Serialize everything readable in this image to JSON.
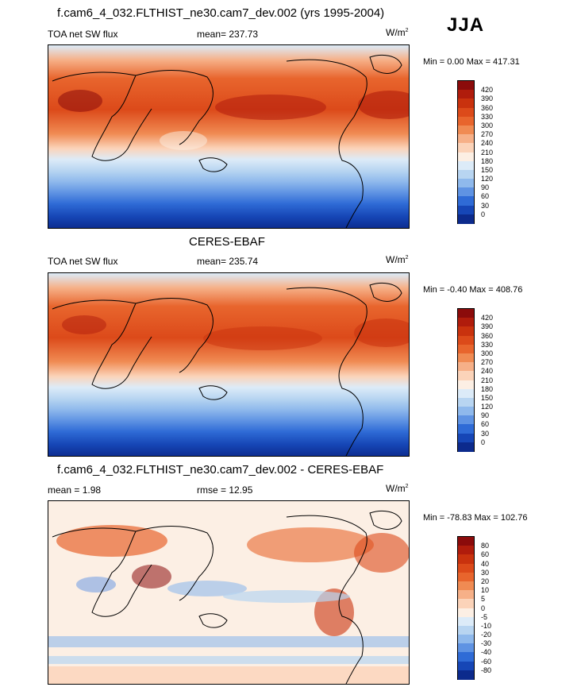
{
  "season": "JJA",
  "panels": [
    {
      "id": "model",
      "title": "f.cam6_4_032.FLTHIST_ne30.cam7_dev.002 (yrs 1995-2004)",
      "left_label": "TOA net SW flux",
      "center_label": "mean= 237.73",
      "units_base": "W/m",
      "units_sup": "2",
      "minmax": "Min =   0.00 Max = 417.31",
      "colorbar": {
        "labels": [
          "420",
          "390",
          "360",
          "330",
          "300",
          "270",
          "240",
          "210",
          "180",
          "150",
          "120",
          "90",
          "60",
          "30",
          "0"
        ],
        "colors": [
          "#8b0b0b",
          "#b01c0c",
          "#c9320e",
          "#dc4a1a",
          "#e8652d",
          "#f08b53",
          "#f6b088",
          "#fbd3b9",
          "#fcefe4",
          "#dcebf8",
          "#b8d5f1",
          "#8fb9ec",
          "#5f93e3",
          "#2f6bd6",
          "#1646b6",
          "#0c2a8c"
        ]
      }
    },
    {
      "id": "obs",
      "title": "CERES-EBAF",
      "left_label": "TOA net SW flux",
      "center_label": "mean= 235.74",
      "units_base": "W/m",
      "units_sup": "2",
      "minmax": "Min =  -0.40 Max = 408.76",
      "colorbar": {
        "labels": [
          "420",
          "390",
          "360",
          "330",
          "300",
          "270",
          "240",
          "210",
          "180",
          "150",
          "120",
          "90",
          "60",
          "30",
          "0"
        ],
        "colors": [
          "#8b0b0b",
          "#b01c0c",
          "#c9320e",
          "#dc4a1a",
          "#e8652d",
          "#f08b53",
          "#f6b088",
          "#fbd3b9",
          "#fcefe4",
          "#dcebf8",
          "#b8d5f1",
          "#8fb9ec",
          "#5f93e3",
          "#2f6bd6",
          "#1646b6",
          "#0c2a8c"
        ]
      }
    },
    {
      "id": "diff",
      "title": "f.cam6_4_032.FLTHIST_ne30.cam7_dev.002 - CERES-EBAF",
      "left_label": "mean =   1.98",
      "center_label": "rmse =  12.95",
      "units_base": "W/m",
      "units_sup": "2",
      "minmax": "Min = -78.83 Max = 102.76",
      "colorbar": {
        "labels": [
          "80",
          "60",
          "40",
          "30",
          "20",
          "10",
          "5",
          "0",
          "-5",
          "-10",
          "-20",
          "-30",
          "-40",
          "-60",
          "-80"
        ],
        "colors": [
          "#8b0b0b",
          "#b01c0c",
          "#c9320e",
          "#dc4a1a",
          "#e8652d",
          "#f08b53",
          "#f6b088",
          "#fbd3b9",
          "#fcefe4",
          "#dcebf8",
          "#b8d5f1",
          "#8fb9ec",
          "#5f93e3",
          "#2f6bd6",
          "#1646b6",
          "#0c2a8c"
        ]
      }
    }
  ],
  "chart_data": [
    {
      "type": "heatmap",
      "title": "f.cam6_4_032.FLTHIST_ne30.cam7_dev.002 (yrs 1995-2004)",
      "variable": "TOA net SW flux",
      "season": "JJA",
      "mean": 237.73,
      "min": 0.0,
      "max": 417.31,
      "units": "W/m2",
      "colorbar_levels": [
        0,
        30,
        60,
        90,
        120,
        150,
        180,
        210,
        240,
        270,
        300,
        330,
        360,
        390,
        420
      ]
    },
    {
      "type": "heatmap",
      "title": "CERES-EBAF",
      "variable": "TOA net SW flux",
      "season": "JJA",
      "mean": 235.74,
      "min": -0.4,
      "max": 408.76,
      "units": "W/m2",
      "colorbar_levels": [
        0,
        30,
        60,
        90,
        120,
        150,
        180,
        210,
        240,
        270,
        300,
        330,
        360,
        390,
        420
      ]
    },
    {
      "type": "heatmap",
      "title": "f.cam6_4_032.FLTHIST_ne30.cam7_dev.002 - CERES-EBAF",
      "season": "JJA",
      "mean": 1.98,
      "rmse": 12.95,
      "min": -78.83,
      "max": 102.76,
      "units": "W/m2",
      "colorbar_levels": [
        -80,
        -60,
        -40,
        -30,
        -20,
        -10,
        -5,
        0,
        5,
        10,
        20,
        30,
        40,
        60,
        80
      ]
    }
  ]
}
